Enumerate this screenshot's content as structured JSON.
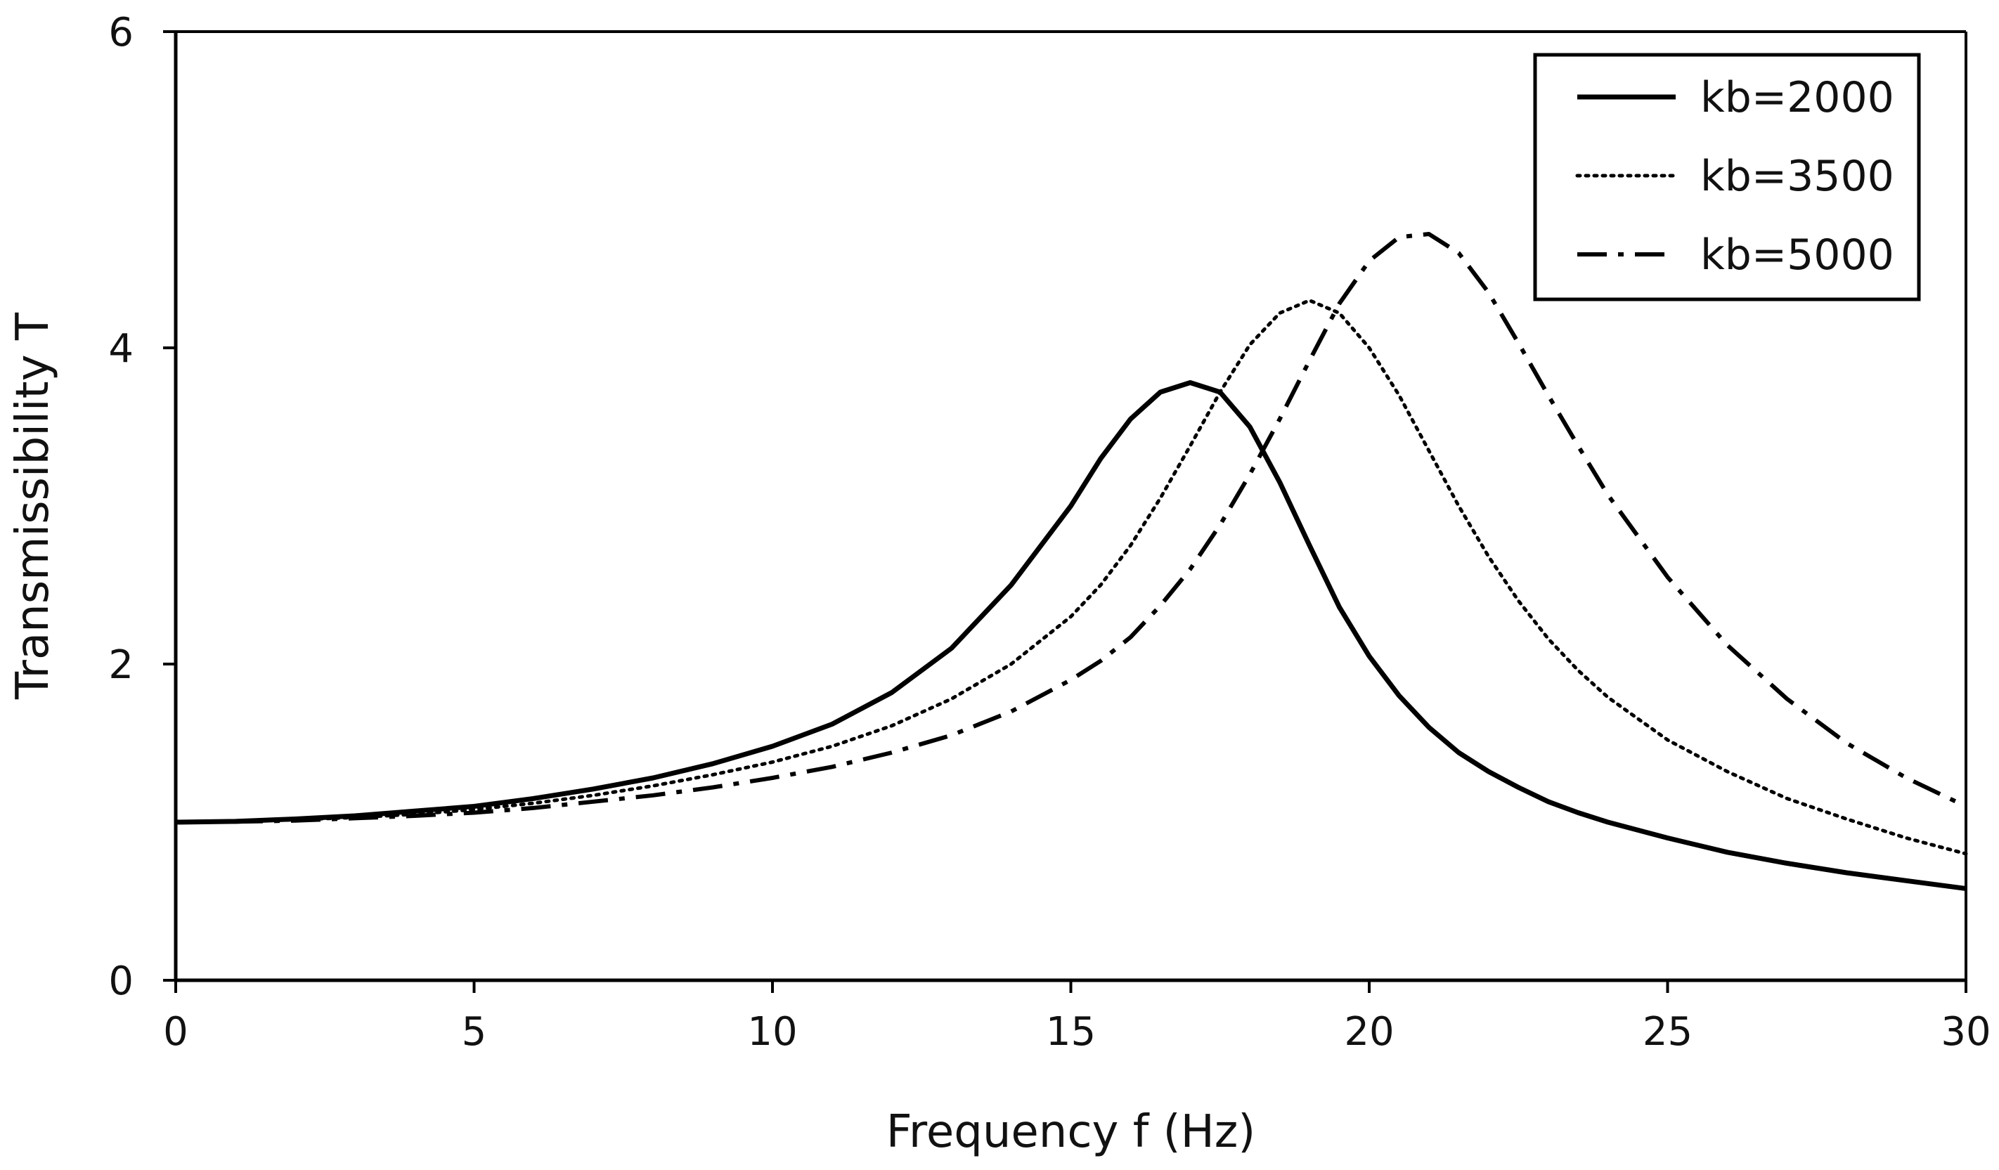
{
  "chart_data": {
    "type": "line",
    "title": "",
    "xlabel": "Frequency f (Hz)",
    "ylabel": "Transmissibility T",
    "xlim": [
      0,
      30
    ],
    "ylim": [
      0,
      6
    ],
    "xticks": [
      0,
      5,
      10,
      15,
      20,
      25,
      30
    ],
    "yticks": [
      0,
      2,
      4,
      6
    ],
    "xtick_labels": [
      "0",
      "5",
      "10",
      "15",
      "20",
      "25",
      "30"
    ],
    "ytick_labels": [
      "0",
      "2",
      "4",
      "6"
    ],
    "grid": false,
    "legend_position": "top-right",
    "x": [
      0,
      1,
      2,
      3,
      4,
      5,
      6,
      7,
      8,
      9,
      10,
      11,
      12,
      13,
      14,
      15,
      15.5,
      16,
      16.5,
      17,
      17.5,
      18,
      18.5,
      19,
      19.5,
      20,
      20.5,
      21,
      21.5,
      22,
      22.5,
      23,
      23.5,
      24,
      25,
      26,
      27,
      28,
      29,
      30
    ],
    "series": [
      {
        "name": "kb=2000",
        "style": "solid",
        "values": [
          1.0,
          1.005,
          1.02,
          1.04,
          1.07,
          1.1,
          1.15,
          1.21,
          1.28,
          1.37,
          1.48,
          1.62,
          1.82,
          2.1,
          2.5,
          3.0,
          3.3,
          3.55,
          3.72,
          3.78,
          3.72,
          3.5,
          3.15,
          2.75,
          2.36,
          2.05,
          1.8,
          1.6,
          1.44,
          1.32,
          1.22,
          1.13,
          1.06,
          1.0,
          0.9,
          0.81,
          0.74,
          0.68,
          0.63,
          0.58
        ]
      },
      {
        "name": "kb=3500",
        "style": "dotted",
        "values": [
          1.0,
          1.004,
          1.015,
          1.03,
          1.05,
          1.08,
          1.12,
          1.17,
          1.23,
          1.3,
          1.38,
          1.48,
          1.61,
          1.78,
          2.0,
          2.3,
          2.5,
          2.75,
          3.05,
          3.38,
          3.72,
          4.02,
          4.22,
          4.3,
          4.22,
          4.0,
          3.7,
          3.35,
          3.0,
          2.68,
          2.4,
          2.16,
          1.96,
          1.79,
          1.52,
          1.32,
          1.15,
          1.02,
          0.9,
          0.8
        ]
      },
      {
        "name": "kb=5000",
        "style": "dashdot",
        "values": [
          1.0,
          1.003,
          1.01,
          1.025,
          1.04,
          1.06,
          1.09,
          1.13,
          1.17,
          1.22,
          1.28,
          1.35,
          1.44,
          1.55,
          1.7,
          1.9,
          2.02,
          2.17,
          2.37,
          2.6,
          2.88,
          3.2,
          3.55,
          3.92,
          4.28,
          4.55,
          4.7,
          4.72,
          4.6,
          4.35,
          4.03,
          3.7,
          3.38,
          3.07,
          2.55,
          2.12,
          1.78,
          1.5,
          1.28,
          1.1
        ]
      }
    ]
  },
  "colors": {
    "line": "#000000",
    "axis": "#000000",
    "background": "#ffffff"
  }
}
